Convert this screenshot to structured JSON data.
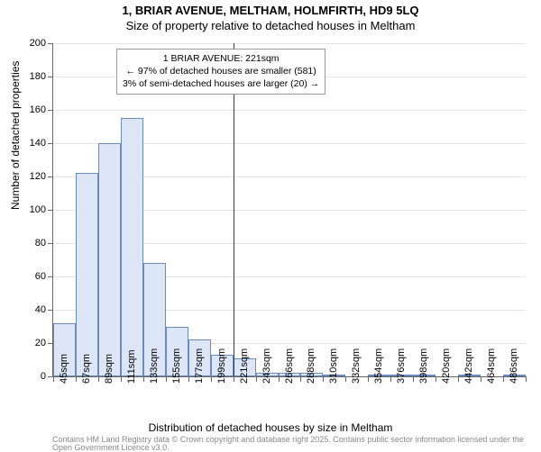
{
  "title": "1, BRIAR AVENUE, MELTHAM, HOLMFIRTH, HD9 5LQ",
  "subtitle": "Size of property relative to detached houses in Meltham",
  "y_axis_title": "Number of detached properties",
  "x_axis_title": "Distribution of detached houses by size in Meltham",
  "footnote": "Contains HM Land Registry data © Crown copyright and database right 2025. Contains public sector information licensed under the Open Government Licence v3.0.",
  "annotation": {
    "line1": "1 BRIAR AVENUE: 221sqm",
    "line2": "← 97% of detached houses are smaller (581)",
    "line3": "3% of semi-detached houses are larger (20) →"
  },
  "chart": {
    "type": "histogram",
    "ylim": [
      0,
      200
    ],
    "ytick_step": 20,
    "x_categories": [
      "45sqm",
      "67sqm",
      "89sqm",
      "111sqm",
      "133sqm",
      "155sqm",
      "177sqm",
      "199sqm",
      "221sqm",
      "243sqm",
      "266sqm",
      "288sqm",
      "310sqm",
      "332sqm",
      "354sqm",
      "376sqm",
      "398sqm",
      "420sqm",
      "442sqm",
      "464sqm",
      "486sqm"
    ],
    "values": [
      32,
      122,
      140,
      155,
      68,
      30,
      22,
      13,
      11,
      2,
      2,
      2,
      1,
      0,
      1,
      1,
      1,
      0,
      1,
      0,
      1
    ],
    "marker_index": 8,
    "bar_fill": "#dde6f6",
    "bar_stroke": "#6a8bc0",
    "marker_color": "#cc0000",
    "grid_color": "#e5e5e5",
    "axis_color": "#666666",
    "background_color": "#ffffff",
    "title_fontsize": 13,
    "label_fontsize": 11,
    "axis_title_fontsize": 12,
    "annotation_fontsize": 10.5,
    "footnote_fontsize": 9,
    "footnote_color": "#888888"
  }
}
